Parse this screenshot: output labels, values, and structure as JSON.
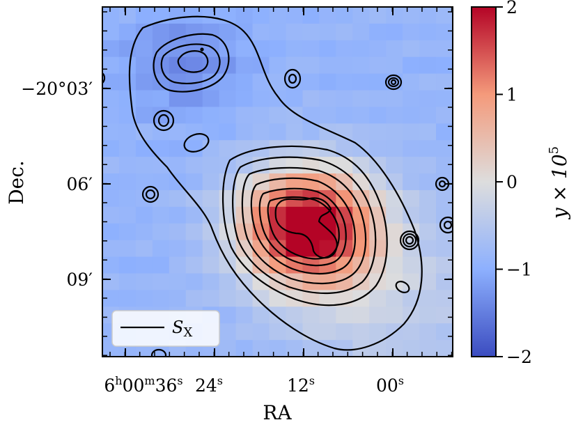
{
  "chart_data": {
    "type": "heatmap",
    "title": "",
    "xlabel": "RA",
    "ylabel": "Dec.",
    "x_ticks": [
      {
        "h": "6",
        "m": "00",
        "s": "36"
      },
      {
        "s": "24"
      },
      {
        "s": "12"
      },
      {
        "s": "00"
      }
    ],
    "y_ticks": [
      "−20°03′",
      "06′",
      "09′"
    ],
    "colorbar": {
      "label_main": "y × 10",
      "label_exp": "5",
      "range": [
        -2,
        2
      ],
      "ticks": [
        "−2",
        "−1",
        "0",
        "1",
        "2"
      ],
      "tick_values": [
        -2,
        -1,
        0,
        1,
        2
      ],
      "colormap": "coolwarm"
    },
    "legend": {
      "symbol": "S",
      "subscript": "X",
      "position": "lower-left"
    },
    "contour_series": "S_X (X-ray surface brightness)",
    "heatmap_summary": {
      "peak_region": "centre-right, around RA 6h00m12s, Dec -20°07′",
      "peak_value": 2,
      "minimum_region": "upper-left, around RA 6h00m27s, Dec -20°02′",
      "minimum_value": -1.4
    }
  }
}
